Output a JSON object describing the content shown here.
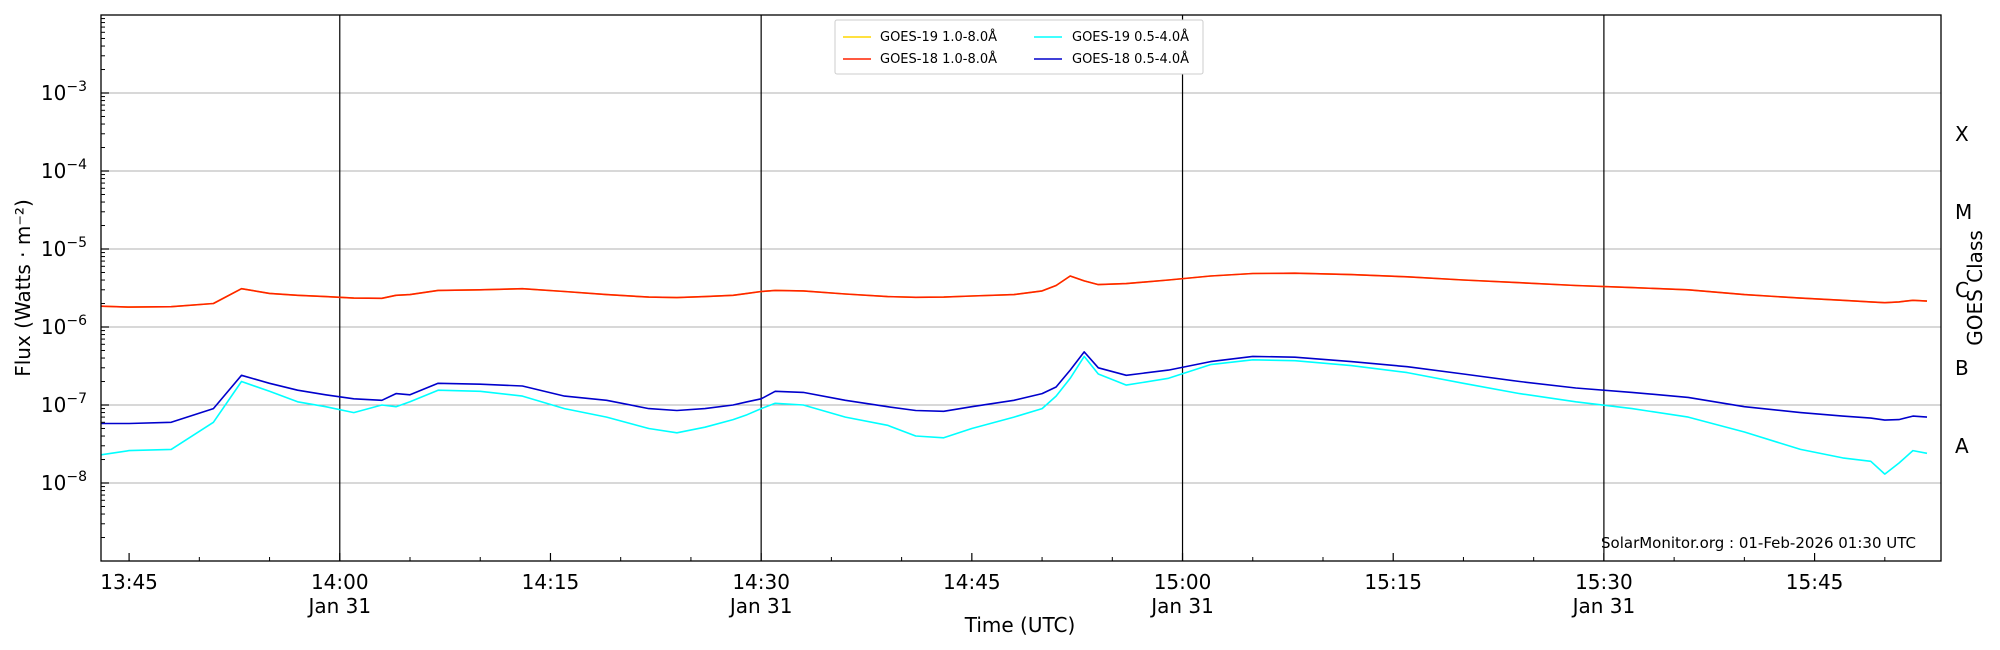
{
  "chart_data": {
    "type": "line",
    "xlabel": "Time (UTC)",
    "ylabel": "Flux (Watts · m⁻²)",
    "right_label": "GOES Class",
    "credit": "SolarMonitor.org : 01-Feb-2026 01:30 UTC",
    "y_scale": "log",
    "ylim": [
      1e-09,
      0.01
    ],
    "y_ticks": [
      {
        "value": 1e-08,
        "base": "10",
        "exp": "−8"
      },
      {
        "value": 1e-07,
        "base": "10",
        "exp": "−7"
      },
      {
        "value": 1e-06,
        "base": "10",
        "exp": "−6"
      },
      {
        "value": 1e-05,
        "base": "10",
        "exp": "−5"
      },
      {
        "value": 0.0001,
        "base": "10",
        "exp": "−4"
      },
      {
        "value": 0.001,
        "base": "10",
        "exp": "−3"
      }
    ],
    "xlim": [
      "13:43",
      "15:54"
    ],
    "x_ticks": [
      {
        "time": "13:45",
        "label": "13:45",
        "sublabel": ""
      },
      {
        "time": "14:00",
        "label": "14:00",
        "sublabel": "Jan 31"
      },
      {
        "time": "14:15",
        "label": "14:15",
        "sublabel": ""
      },
      {
        "time": "14:30",
        "label": "14:30",
        "sublabel": "Jan 31"
      },
      {
        "time": "14:45",
        "label": "14:45",
        "sublabel": ""
      },
      {
        "time": "15:00",
        "label": "15:00",
        "sublabel": "Jan 31"
      },
      {
        "time": "15:15",
        "label": "15:15",
        "sublabel": ""
      },
      {
        "time": "15:30",
        "label": "15:30",
        "sublabel": "Jan 31"
      },
      {
        "time": "15:45",
        "label": "15:45",
        "sublabel": ""
      }
    ],
    "vertical_lines": [
      "14:00",
      "14:30",
      "15:00",
      "15:30"
    ],
    "goes_classes": [
      {
        "label": "A",
        "value": 3e-08
      },
      {
        "label": "B",
        "value": 3e-07
      },
      {
        "label": "C",
        "value": 3e-06
      },
      {
        "label": "M",
        "value": 3e-05
      },
      {
        "label": "X",
        "value": 0.0003
      }
    ],
    "grid": "horizontal",
    "legend_position": "top-center",
    "x": [
      "13:43",
      "13:45",
      "13:48",
      "13:51",
      "13:53",
      "13:55",
      "13:57",
      "13:59",
      "14:01",
      "14:03",
      "14:04",
      "14:05",
      "14:07",
      "14:10",
      "14:13",
      "14:16",
      "14:19",
      "14:22",
      "14:24",
      "14:26",
      "14:28",
      "14:29",
      "14:30",
      "14:31",
      "14:33",
      "14:36",
      "14:39",
      "14:41",
      "14:43",
      "14:45",
      "14:48",
      "14:50",
      "14:51",
      "14:52",
      "14:53",
      "14:54",
      "14:56",
      "14:59",
      "15:02",
      "15:05",
      "15:08",
      "15:12",
      "15:16",
      "15:20",
      "15:24",
      "15:28",
      "15:32",
      "15:36",
      "15:40",
      "15:44",
      "15:47",
      "15:49",
      "15:50",
      "15:51",
      "15:52",
      "15:53"
    ],
    "series": [
      {
        "name": "GOES-19 1.0-8.0Å",
        "color": "#ffd700",
        "values": [
          1.85e-06,
          1.8e-06,
          1.82e-06,
          2e-06,
          3.1e-06,
          2.7e-06,
          2.55e-06,
          2.45e-06,
          2.35e-06,
          2.33e-06,
          2.55e-06,
          2.6e-06,
          2.95e-06,
          3e-06,
          3.1e-06,
          2.85e-06,
          2.6e-06,
          2.42e-06,
          2.38e-06,
          2.45e-06,
          2.55e-06,
          2.7e-06,
          2.85e-06,
          2.95e-06,
          2.9e-06,
          2.65e-06,
          2.45e-06,
          2.4e-06,
          2.42e-06,
          2.5e-06,
          2.6e-06,
          2.9e-06,
          3.4e-06,
          4.5e-06,
          3.9e-06,
          3.5e-06,
          3.6e-06,
          4e-06,
          4.5e-06,
          4.85e-06,
          4.9e-06,
          4.7e-06,
          4.4e-06,
          4e-06,
          3.7e-06,
          3.4e-06,
          3.2e-06,
          3e-06,
          2.6e-06,
          2.35e-06,
          2.2e-06,
          2.1e-06,
          2.05e-06,
          2.1e-06,
          2.2e-06,
          2.15e-06
        ]
      },
      {
        "name": "GOES-18 1.0-8.0Å",
        "color": "#ff2200",
        "values": [
          1.85e-06,
          1.8e-06,
          1.82e-06,
          2e-06,
          3.1e-06,
          2.7e-06,
          2.55e-06,
          2.45e-06,
          2.35e-06,
          2.33e-06,
          2.55e-06,
          2.6e-06,
          2.95e-06,
          3e-06,
          3.1e-06,
          2.85e-06,
          2.6e-06,
          2.42e-06,
          2.38e-06,
          2.45e-06,
          2.55e-06,
          2.7e-06,
          2.85e-06,
          2.95e-06,
          2.9e-06,
          2.65e-06,
          2.45e-06,
          2.4e-06,
          2.42e-06,
          2.5e-06,
          2.6e-06,
          2.9e-06,
          3.4e-06,
          4.5e-06,
          3.9e-06,
          3.5e-06,
          3.6e-06,
          4e-06,
          4.5e-06,
          4.85e-06,
          4.9e-06,
          4.7e-06,
          4.4e-06,
          4e-06,
          3.7e-06,
          3.4e-06,
          3.2e-06,
          3e-06,
          2.6e-06,
          2.35e-06,
          2.2e-06,
          2.1e-06,
          2.05e-06,
          2.1e-06,
          2.2e-06,
          2.15e-06
        ]
      },
      {
        "name": "GOES-19 0.5-4.0Å",
        "color": "#00ffff",
        "values": [
          2.3e-08,
          2.6e-08,
          2.7e-08,
          6e-08,
          2e-07,
          1.5e-07,
          1.1e-07,
          9.5e-08,
          8e-08,
          1e-07,
          9.5e-08,
          1.1e-07,
          1.55e-07,
          1.5e-07,
          1.3e-07,
          9e-08,
          7e-08,
          5e-08,
          4.4e-08,
          5.2e-08,
          6.5e-08,
          7.5e-08,
          9e-08,
          1.05e-07,
          1e-07,
          7e-08,
          5.5e-08,
          4e-08,
          3.8e-08,
          5e-08,
          7e-08,
          9e-08,
          1.3e-07,
          2.2e-07,
          4.2e-07,
          2.5e-07,
          1.8e-07,
          2.2e-07,
          3.3e-07,
          3.8e-07,
          3.7e-07,
          3.2e-07,
          2.6e-07,
          1.9e-07,
          1.4e-07,
          1.1e-07,
          9e-08,
          7e-08,
          4.5e-08,
          2.7e-08,
          2.1e-08,
          1.9e-08,
          1.3e-08,
          1.8e-08,
          2.6e-08,
          2.4e-08
        ]
      },
      {
        "name": "GOES-18 0.5-4.0Å",
        "color": "#0000cc",
        "values": [
          5.8e-08,
          5.8e-08,
          6e-08,
          9e-08,
          2.4e-07,
          1.9e-07,
          1.55e-07,
          1.35e-07,
          1.2e-07,
          1.15e-07,
          1.4e-07,
          1.35e-07,
          1.9e-07,
          1.85e-07,
          1.75e-07,
          1.3e-07,
          1.15e-07,
          9e-08,
          8.5e-08,
          9e-08,
          1e-07,
          1.1e-07,
          1.2e-07,
          1.5e-07,
          1.45e-07,
          1.15e-07,
          9.5e-08,
          8.5e-08,
          8.3e-08,
          9.5e-08,
          1.15e-07,
          1.4e-07,
          1.7e-07,
          2.8e-07,
          4.8e-07,
          3e-07,
          2.4e-07,
          2.8e-07,
          3.6e-07,
          4.2e-07,
          4.1e-07,
          3.6e-07,
          3.1e-07,
          2.5e-07,
          2e-07,
          1.65e-07,
          1.45e-07,
          1.25e-07,
          9.5e-08,
          8e-08,
          7.2e-08,
          6.8e-08,
          6.4e-08,
          6.5e-08,
          7.2e-08,
          7e-08
        ]
      }
    ]
  }
}
